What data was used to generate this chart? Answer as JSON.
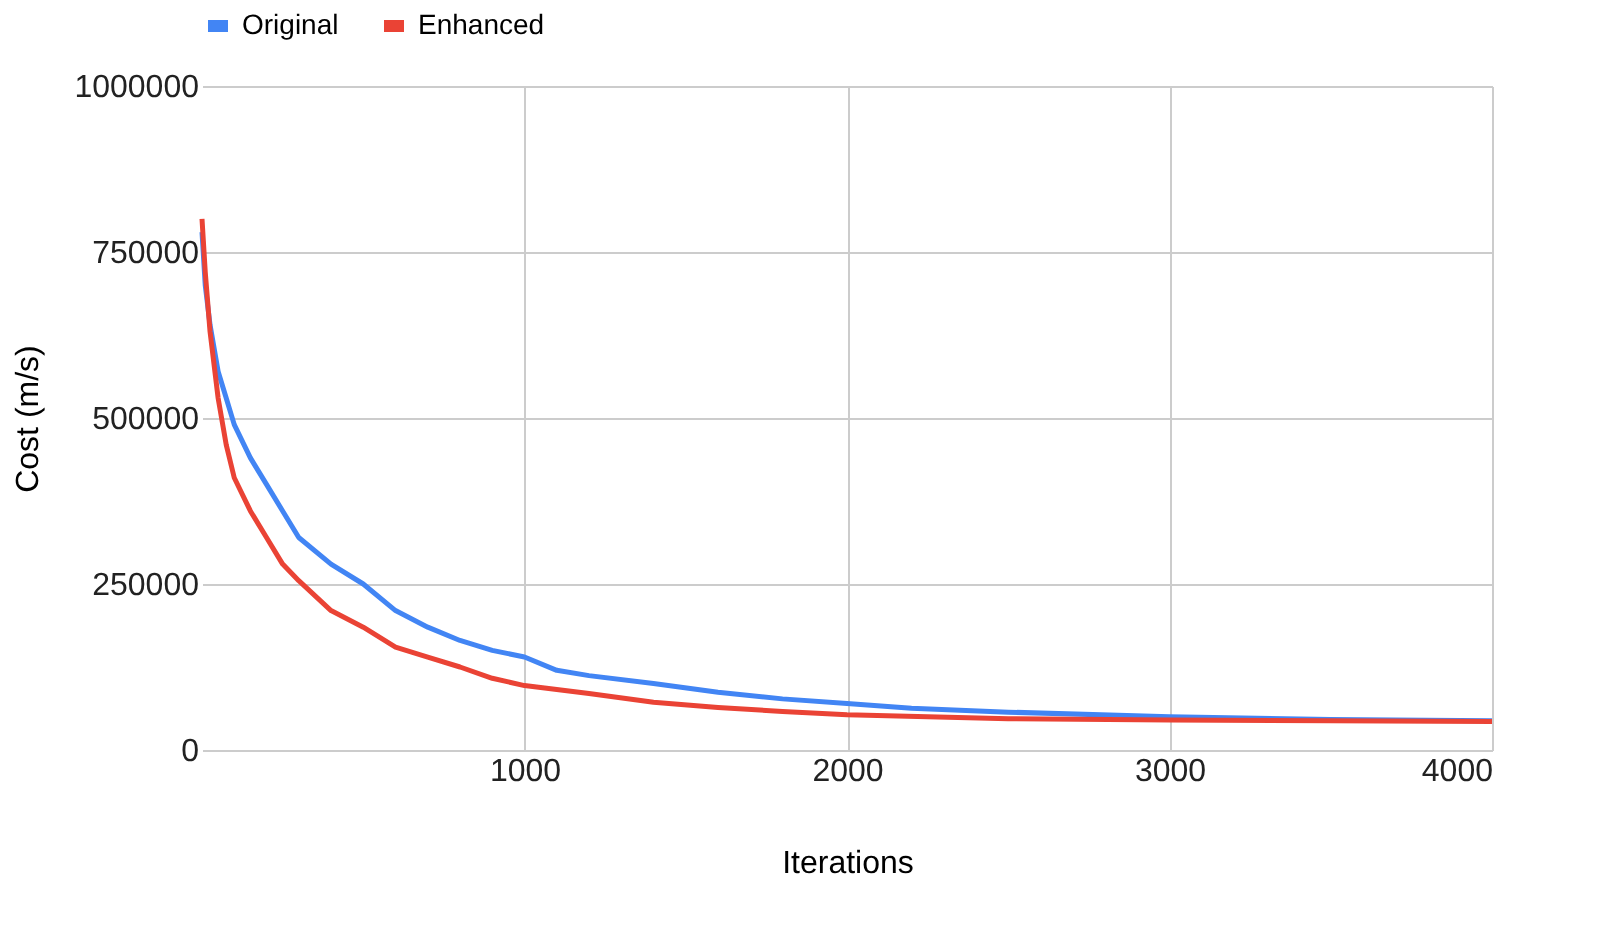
{
  "chart_data": {
    "type": "line",
    "xlabel": "Iterations",
    "ylabel": "Cost (m/s)",
    "xlim": [
      0,
      4000
    ],
    "xticks": [
      1000,
      2000,
      3000,
      4000
    ],
    "ylim": [
      0,
      1000000
    ],
    "yticks": [
      0,
      250000,
      500000,
      750000,
      1000000
    ],
    "grid": true,
    "legend": "top",
    "line_style": "solid",
    "series": [
      {
        "name": "Original",
        "color": "#4285f4",
        "x": [
          0,
          10,
          25,
          50,
          75,
          100,
          150,
          200,
          250,
          300,
          400,
          500,
          600,
          700,
          800,
          900,
          1000,
          1100,
          1200,
          1400,
          1600,
          1800,
          2000,
          2200,
          2500,
          3000,
          3500,
          4000
        ],
        "values": [
          780000,
          700000,
          640000,
          570000,
          530000,
          490000,
          440000,
          400000,
          360000,
          320000,
          280000,
          250000,
          210000,
          185000,
          165000,
          150000,
          140000,
          120000,
          112000,
          100000,
          87000,
          77000,
          70000,
          63000,
          57000,
          50000,
          46000,
          44000
        ]
      },
      {
        "name": "Enhanced",
        "color": "#ea4335",
        "x": [
          0,
          10,
          25,
          50,
          75,
          100,
          150,
          200,
          250,
          300,
          400,
          500,
          600,
          700,
          800,
          900,
          1000,
          1200,
          1400,
          1600,
          1800,
          2000,
          2500,
          3000,
          3500,
          4000
        ],
        "values": [
          800000,
          720000,
          630000,
          530000,
          460000,
          410000,
          360000,
          320000,
          280000,
          255000,
          210000,
          185000,
          155000,
          140000,
          125000,
          108000,
          97000,
          85000,
          72000,
          64000,
          58000,
          53000,
          47000,
          45000,
          44000,
          43000
        ]
      }
    ]
  }
}
